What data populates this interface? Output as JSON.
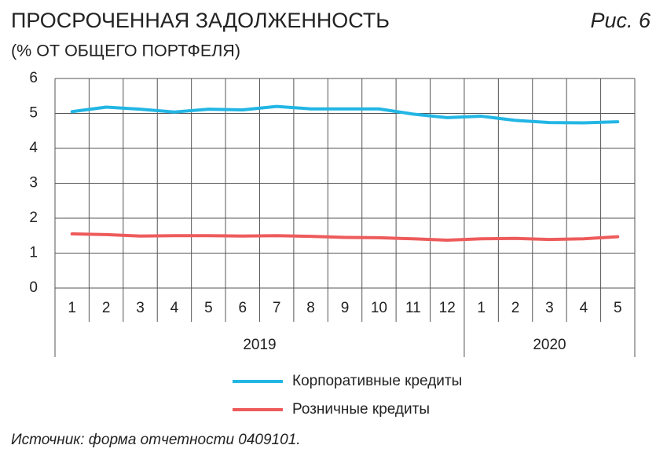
{
  "chart_data": {
    "type": "line",
    "title": "ПРОСРОЧЕННАЯ ЗАДОЛЖЕННОСТЬ",
    "figure_label": "Рис. 6",
    "subtitle": "(% ОТ ОБЩЕГО ПОРТФЕЛЯ)",
    "source": "Источник: форма отчетности 0409101.",
    "categories": [
      "1",
      "2",
      "3",
      "4",
      "5",
      "6",
      "7",
      "8",
      "9",
      "10",
      "11",
      "12",
      "1",
      "2",
      "3",
      "4",
      "5"
    ],
    "year_groups": [
      {
        "label": "2019",
        "count": 12
      },
      {
        "label": "2020",
        "count": 5
      }
    ],
    "series": [
      {
        "name": "Корпоративные кредиты",
        "color": "#22b6e4",
        "values": [
          5.05,
          5.18,
          5.12,
          5.04,
          5.12,
          5.1,
          5.2,
          5.13,
          5.13,
          5.13,
          4.98,
          4.88,
          4.92,
          4.8,
          4.74,
          4.73,
          4.76
        ]
      },
      {
        "name": "Розничные кредиты",
        "color": "#ee5b5b",
        "values": [
          1.55,
          1.53,
          1.49,
          1.5,
          1.5,
          1.49,
          1.5,
          1.48,
          1.45,
          1.44,
          1.41,
          1.37,
          1.41,
          1.42,
          1.39,
          1.41,
          1.47
        ]
      }
    ],
    "ylim": [
      0,
      6
    ],
    "yticks": [
      0,
      1,
      2,
      3,
      4,
      5,
      6
    ],
    "grid": true
  }
}
